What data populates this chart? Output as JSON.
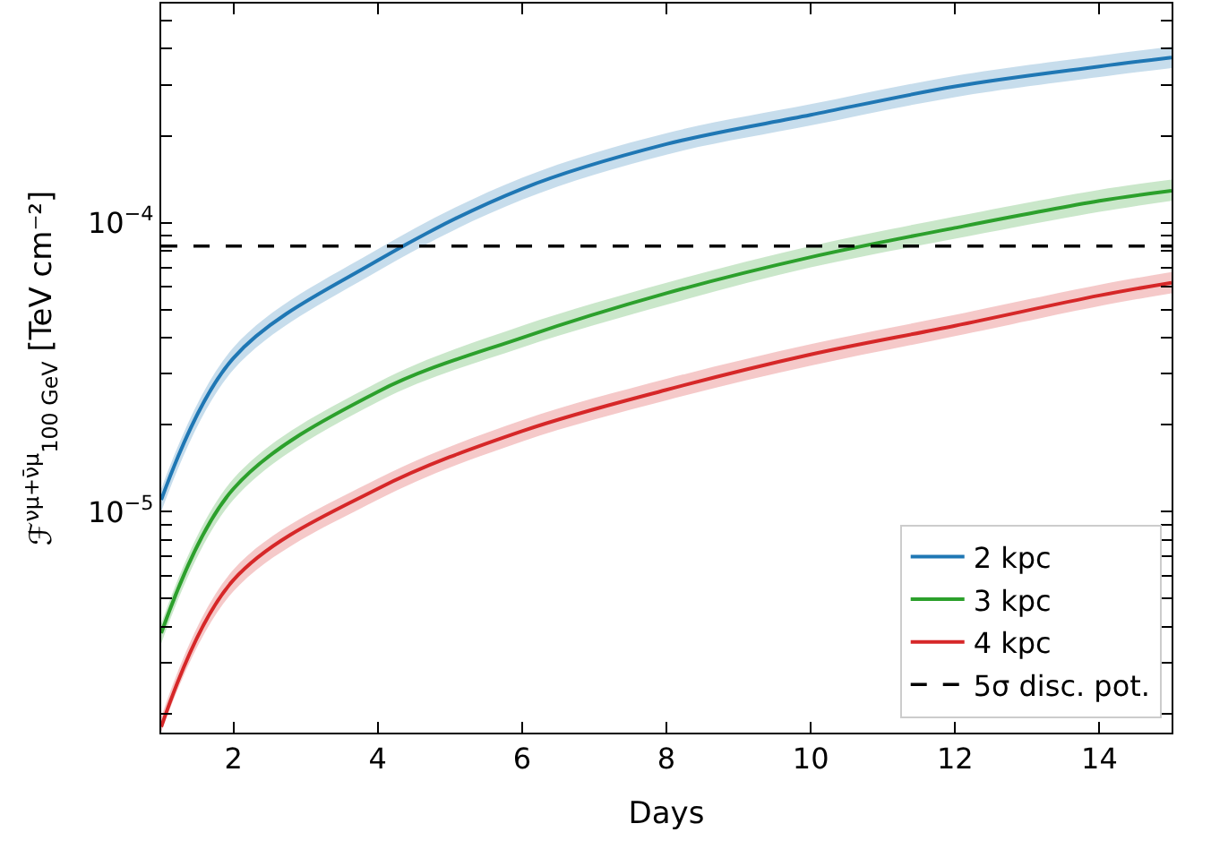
{
  "chart_data": {
    "type": "line",
    "xlabel": "Days",
    "ylabel": "ℱ$^{νμ+ν̄μ}$$_{100 GeV}$ [TeV cm⁻²]",
    "x": [
      1,
      2,
      4,
      6,
      8,
      10,
      12,
      14,
      15
    ],
    "series": [
      {
        "name": "2 kpc",
        "color": "#1f77b4",
        "values": [
          1.1e-05,
          3.4e-05,
          7.4e-05,
          0.000131,
          0.000187,
          0.000236,
          0.000296,
          0.000347,
          0.000373
        ],
        "lower": [
          1e-05,
          3.1e-05,
          6.8e-05,
          0.00012,
          0.000172,
          0.000217,
          0.000272,
          0.000319,
          0.000343
        ],
        "upper": [
          1.2e-05,
          3.7e-05,
          8.1e-05,
          0.000143,
          0.000204,
          0.000257,
          0.000322,
          0.000378,
          0.000407
        ]
      },
      {
        "name": "3 kpc",
        "color": "#2ca02c",
        "values": [
          3.8e-06,
          1.2e-05,
          2.6e-05,
          4e-05,
          5.7e-05,
          7.6e-05,
          9.6e-05,
          0.000119,
          0.000129
        ],
        "lower": [
          3.5e-06,
          1.1e-05,
          2.4e-05,
          3.7e-05,
          5.2e-05,
          7e-05,
          8.8e-05,
          0.000109,
          0.000119
        ],
        "upper": [
          4.1e-06,
          1.3e-05,
          2.8e-05,
          4.4e-05,
          6.2e-05,
          8.3e-05,
          0.000105,
          0.00013,
          0.000141
        ]
      },
      {
        "name": "4 kpc",
        "color": "#d62728",
        "values": [
          1.8e-06,
          5.8e-06,
          1.2e-05,
          1.9e-05,
          2.64e-05,
          3.5e-05,
          4.4e-05,
          5.6e-05,
          6.2e-05
        ],
        "lower": [
          1.73e-06,
          5.3e-06,
          1.1e-05,
          1.75e-05,
          2.43e-05,
          3.2e-05,
          4.05e-05,
          5.15e-05,
          5.7e-05
        ],
        "upper": [
          1.95e-06,
          6.3e-06,
          1.3e-05,
          2.07e-05,
          2.88e-05,
          3.8e-05,
          4.8e-05,
          6.1e-05,
          6.75e-05
        ]
      }
    ],
    "ref_lines": [
      {
        "axis": "y",
        "value": 8.3e-05,
        "label": "5σ disc. pot.",
        "color": "#000000",
        "line_style": "dashed"
      }
    ],
    "xlim": [
      1,
      15
    ],
    "xticks": [
      2,
      4,
      6,
      8,
      10,
      12,
      14
    ],
    "ylim": [
      1.72e-06,
      0.000573
    ],
    "log": true,
    "yticks": [
      {
        "value": 2e-06,
        "label": null
      },
      {
        "value": 3e-06,
        "label": null
      },
      {
        "value": 4e-06,
        "label": null
      },
      {
        "value": 5e-06,
        "label": null
      },
      {
        "value": 6e-06,
        "label": null
      },
      {
        "value": 7e-06,
        "label": null
      },
      {
        "value": 8e-06,
        "label": null
      },
      {
        "value": 9e-06,
        "label": null
      },
      {
        "value": 1e-05,
        "label": "10$^{−5}$"
      },
      {
        "value": 2e-05,
        "label": null
      },
      {
        "value": 3e-05,
        "label": null
      },
      {
        "value": 4e-05,
        "label": null
      },
      {
        "value": 5e-05,
        "label": null
      },
      {
        "value": 6e-05,
        "label": null
      },
      {
        "value": 7e-05,
        "label": null
      },
      {
        "value": 8e-05,
        "label": null
      },
      {
        "value": 9e-05,
        "label": null
      },
      {
        "value": 0.0001,
        "label": "10$^{−4}$"
      },
      {
        "value": 0.0002,
        "label": null
      },
      {
        "value": 0.0003,
        "label": null
      },
      {
        "value": 0.0004,
        "label": null
      },
      {
        "value": 0.0005,
        "label": null
      }
    ],
    "legend": "bottom right",
    "marker": "none",
    "line_style": "solid"
  }
}
